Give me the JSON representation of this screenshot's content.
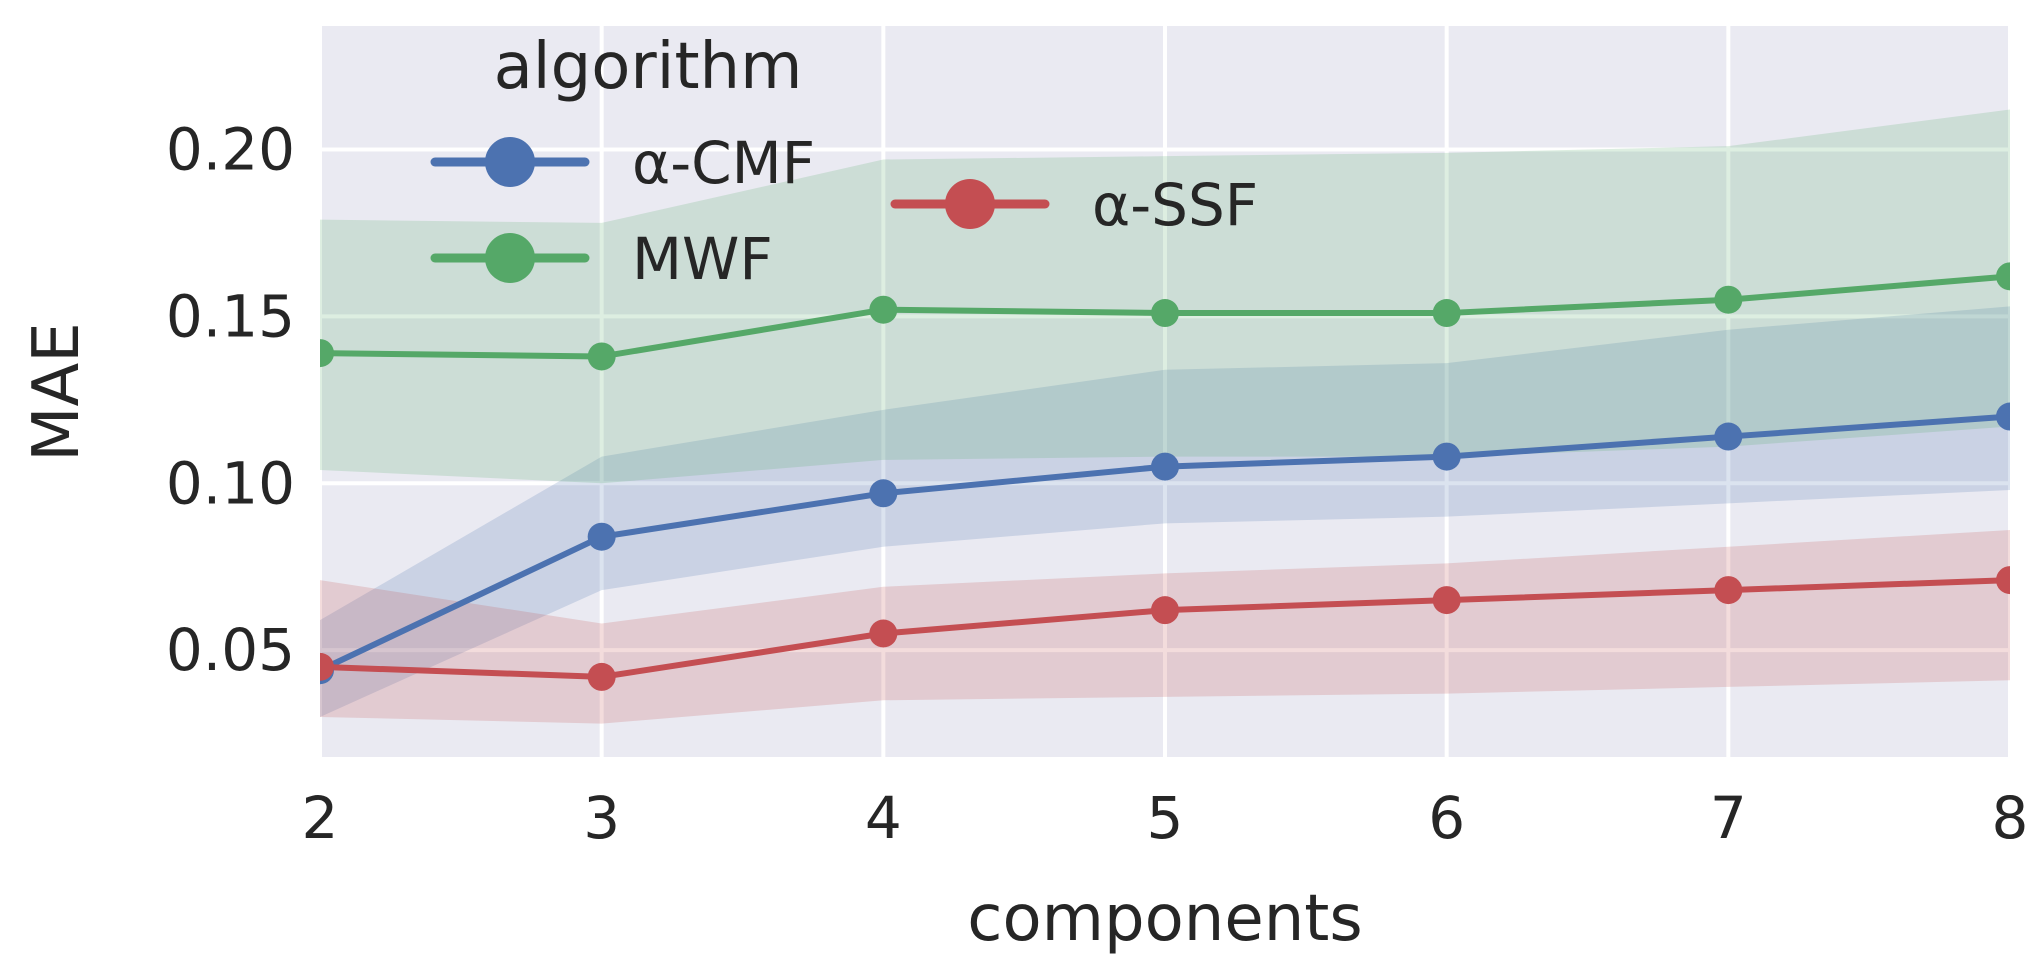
{
  "chart_data": {
    "type": "line",
    "x": [
      2,
      3,
      4,
      5,
      6,
      7,
      8
    ],
    "xlabel": "components",
    "ylabel": "MAE",
    "xlim": [
      2,
      8
    ],
    "ylim": [
      0.018,
      0.237
    ],
    "xticks": [
      "2",
      "3",
      "4",
      "5",
      "6",
      "7",
      "8"
    ],
    "yticks": [
      0.05,
      0.1,
      0.15,
      0.2
    ],
    "ytick_labels": [
      "0.05",
      "0.10",
      "0.15",
      "0.20"
    ],
    "grid": true,
    "background": "#eaeaf2",
    "legend_title": "algorithm",
    "legend_placement": "top-left",
    "series": [
      {
        "name": "α-CMF",
        "color": "#4c72b0",
        "values": [
          0.044,
          0.084,
          0.097,
          0.105,
          0.108,
          0.114,
          0.12
        ],
        "lower": [
          0.03,
          0.068,
          0.081,
          0.088,
          0.09,
          0.094,
          0.098
        ],
        "upper": [
          0.059,
          0.108,
          0.122,
          0.134,
          0.136,
          0.146,
          0.153
        ]
      },
      {
        "name": "MWF",
        "color": "#55a868",
        "values": [
          0.139,
          0.138,
          0.152,
          0.151,
          0.151,
          0.155,
          0.162
        ],
        "lower": [
          0.104,
          0.1,
          0.107,
          0.108,
          0.108,
          0.111,
          0.117
        ],
        "upper": [
          0.179,
          0.178,
          0.197,
          0.198,
          0.199,
          0.201,
          0.212
        ]
      },
      {
        "name": "α-SSF",
        "color": "#c44e52",
        "values": [
          0.045,
          0.042,
          0.055,
          0.062,
          0.065,
          0.068,
          0.071
        ],
        "lower": [
          0.03,
          0.028,
          0.035,
          0.036,
          0.037,
          0.039,
          0.041
        ],
        "upper": [
          0.071,
          0.058,
          0.069,
          0.073,
          0.076,
          0.081,
          0.086
        ]
      }
    ]
  }
}
